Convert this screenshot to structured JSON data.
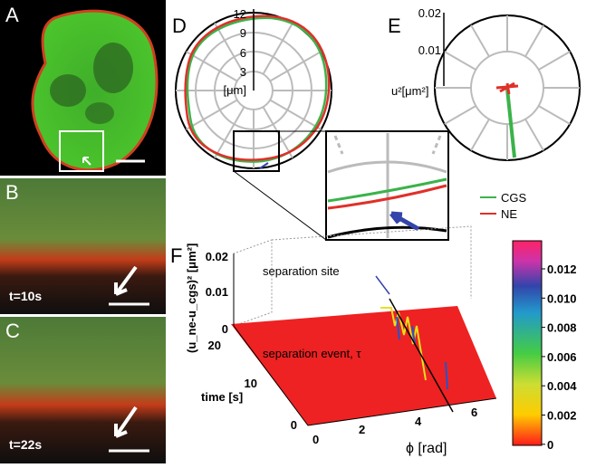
{
  "panels": {
    "a": {
      "label": "A"
    },
    "b": {
      "label": "B",
      "time": "t=10s"
    },
    "c": {
      "label": "C",
      "time": "t=22s"
    },
    "d": {
      "label": "D",
      "ticks": [
        "3",
        "6",
        "9",
        "12"
      ],
      "unit": "[μm]"
    },
    "e": {
      "label": "E",
      "ticks": [
        "0.01",
        "0.02"
      ],
      "axis_label": "u²[μm²]"
    },
    "legend": [
      "CGS",
      "NE"
    ],
    "f": {
      "label": "F",
      "z_label": "(u_ne-u_cgs)² [μm²]",
      "z_ticks": [
        "0.02",
        "0.01",
        "0"
      ],
      "y_label": "time [s]",
      "y_ticks": [
        "20",
        "10",
        "0"
      ],
      "x_label": "ϕ  [rad]",
      "x_ticks": [
        "0",
        "2",
        "4",
        "6"
      ],
      "annotations": [
        "separation site",
        "separation event, τ"
      ],
      "colorbar": [
        "0.012",
        "0.010",
        "0.008",
        "0.006",
        "0.004",
        "0.002",
        "0"
      ]
    }
  }
}
